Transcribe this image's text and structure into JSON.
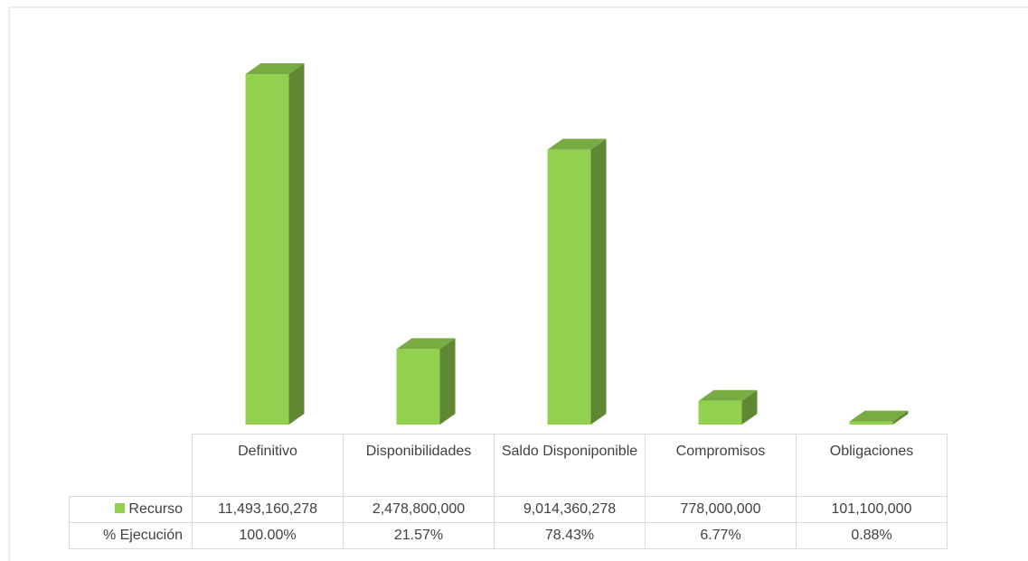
{
  "chart_data": {
    "type": "bar",
    "categories": [
      "Definitivo",
      "Disponibilidades",
      "Saldo Disponiponible",
      "Compromisos",
      "Obligaciones"
    ],
    "series": [
      {
        "name": "Recurso",
        "color": "#92d050",
        "values": [
          11493160278,
          2478800000,
          9014360278,
          778000000,
          101100000
        ],
        "value_labels": [
          "11,493,160,278",
          "2,478,800,000",
          "9,014,360,278",
          "778,000,000",
          "101,100,000"
        ]
      },
      {
        "name": "% Ejecución",
        "values": [
          100.0,
          21.57,
          78.43,
          6.77,
          0.88
        ],
        "value_labels": [
          "100.00%",
          "21.57%",
          "78.43%",
          "6.77%",
          "0.88%"
        ]
      }
    ]
  }
}
